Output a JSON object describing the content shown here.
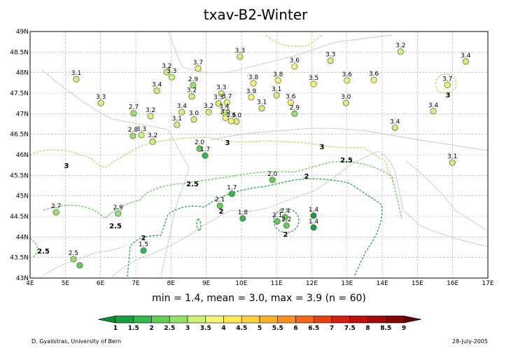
{
  "title": "txav-B2-Winter",
  "stats": "min = 1.4, mean = 3.0, max = 3.9 (n = 60)",
  "credit": "D. Gyalistras, University of Bern",
  "date": "28-July-2005",
  "map": {
    "xlim": [
      4,
      17
    ],
    "ylim": [
      43,
      49
    ],
    "xticks": [
      {
        "value": 4,
        "label": "4E"
      },
      {
        "value": 5,
        "label": "5E"
      },
      {
        "value": 6,
        "label": "6E"
      },
      {
        "value": 7,
        "label": "7E"
      },
      {
        "value": 8,
        "label": "8E"
      },
      {
        "value": 9,
        "label": "9E"
      },
      {
        "value": 10,
        "label": "10E"
      },
      {
        "value": 11,
        "label": "11E"
      },
      {
        "value": 12,
        "label": "12E"
      },
      {
        "value": 13,
        "label": "13E"
      },
      {
        "value": 14,
        "label": "14E"
      },
      {
        "value": 15,
        "label": "15E"
      },
      {
        "value": 16,
        "label": "16E"
      },
      {
        "value": 17,
        "label": "17E"
      }
    ],
    "yticks": [
      {
        "value": 43,
        "label": "43N"
      },
      {
        "value": 43.5,
        "label": "43.5N"
      },
      {
        "value": 44,
        "label": "44N"
      },
      {
        "value": 44.5,
        "label": "44.5N"
      },
      {
        "value": 45,
        "label": "45N"
      },
      {
        "value": 45.5,
        "label": "45.5N"
      },
      {
        "value": 46,
        "label": "46N"
      },
      {
        "value": 46.5,
        "label": "46.5N"
      },
      {
        "value": 47,
        "label": "47N"
      },
      {
        "value": 47.5,
        "label": "47.5N"
      },
      {
        "value": 48,
        "label": "48N"
      },
      {
        "value": 48.5,
        "label": "48.5N"
      },
      {
        "value": 49,
        "label": "49N"
      }
    ],
    "grid": true
  },
  "contours": [
    {
      "level": 3,
      "color": "#a6e35f"
    },
    {
      "level": 2.5,
      "color": "#5fcb4f"
    },
    {
      "level": 2,
      "color": "#1fa843"
    }
  ],
  "stations": {
    "lon": [
      5.31,
      6.01,
      7.6,
      7.88,
      8.02,
      8.77,
      9.96,
      12.53,
      14.52,
      16.37,
      11.51,
      8.63,
      10.34,
      11.04,
      12.05,
      13.0,
      13.76,
      15.85,
      8.59,
      9.43,
      10.28,
      11.0,
      11.4,
      12.97,
      6.94,
      7.42,
      8.31,
      9.07,
      9.35,
      9.59,
      10.58,
      11.51,
      15.45,
      8.65,
      8.17,
      9.51,
      9.86,
      9.55,
      9.71,
      6.92,
      7.16,
      7.48,
      14.36,
      8.81,
      8.97,
      15.99,
      10.88,
      9.73,
      9.39,
      10.04,
      4.74,
      6.5,
      11.24,
      11.02,
      11.28,
      12.05,
      12.05,
      7.22,
      5.23,
      5.41
    ],
    "lat": [
      47.84,
      47.26,
      47.56,
      48.01,
      47.89,
      48.1,
      48.39,
      48.29,
      48.51,
      48.27,
      48.15,
      47.69,
      47.74,
      47.81,
      47.72,
      47.81,
      47.82,
      47.7,
      47.42,
      47.49,
      47.4,
      47.45,
      47.27,
      47.26,
      47.01,
      46.94,
      47.04,
      47.04,
      47.25,
      47.27,
      47.13,
      47.0,
      47.06,
      46.86,
      46.73,
      47.03,
      46.81,
      46.9,
      46.82,
      46.46,
      46.48,
      46.32,
      46.66,
      46.15,
      45.98,
      45.81,
      45.39,
      45.05,
      44.76,
      44.45,
      44.6,
      44.57,
      44.48,
      44.38,
      44.28,
      44.52,
      44.23,
      43.67,
      43.46,
      43.31
    ],
    "values": [
      3.1,
      3.3,
      3.4,
      3.2,
      3.3,
      3.7,
      3.3,
      3.3,
      3.2,
      3.4,
      3.6,
      2.9,
      3.8,
      3.8,
      3.5,
      3.6,
      3.6,
      3.7,
      3.2,
      3.3,
      3.9,
      3.1,
      3.6,
      3.0,
      2.7,
      3.2,
      3.4,
      3.2,
      3.3,
      3.7,
      3.1,
      2.9,
      3.4,
      3.0,
      3.1,
      3.4,
      3.0,
      3.5,
      3.6,
      2.8,
      3.3,
      3.2,
      3.4,
      2.0,
      1.7,
      3.1,
      2.0,
      1.7,
      2.1,
      1.8,
      2.7,
      2.9,
      2.4,
      2.1,
      2.2,
      1.4,
      1.4,
      1.5,
      2.5,
      2.3
    ],
    "value_labels": [
      "3.1",
      "3.3",
      "3.4",
      "3.2",
      "3.3",
      "3.7",
      "3.3",
      "3.3",
      "3.2",
      "3.4",
      "3.6",
      "2.9",
      "3.8",
      "3.8",
      "3.5",
      "3.6",
      "3.6",
      "3.7",
      "3.2",
      "3.3",
      "3.9",
      "3.1",
      "3.6",
      "3.0",
      "2.7",
      "3.2",
      "3.4",
      "3.2",
      "3.3",
      "3.7",
      "3.1",
      "2.9",
      "3.4",
      "3.0",
      "3.1",
      "3.4",
      "3.0",
      "3.5",
      "3.6",
      "2.8",
      "3.3",
      "3.2",
      "3.4",
      "2.0",
      "1.7",
      "3.1",
      "2.0",
      "1.7",
      "2.1",
      "1.8",
      "2.7",
      "2.9",
      "2.4",
      "2.1",
      "2.2",
      "1.4",
      "1.4",
      "1.5",
      "2.5",
      null
    ]
  },
  "colorbar": {
    "ticks": [
      1,
      1.5,
      2,
      2.5,
      3,
      3.5,
      4,
      4.5,
      5,
      5.5,
      6,
      6.5,
      7,
      7.5,
      8,
      8.5,
      9
    ],
    "colors": [
      "#0a8a34",
      "#18a040",
      "#35b84c",
      "#62cc55",
      "#98e06a",
      "#cff27a",
      "#f4f574",
      "#ffe85a",
      "#ffd040",
      "#ffb22e",
      "#ff9020",
      "#f86818",
      "#e83e14",
      "#d42010",
      "#bc1010",
      "#a00c0c",
      "#820808",
      "#600404"
    ]
  }
}
